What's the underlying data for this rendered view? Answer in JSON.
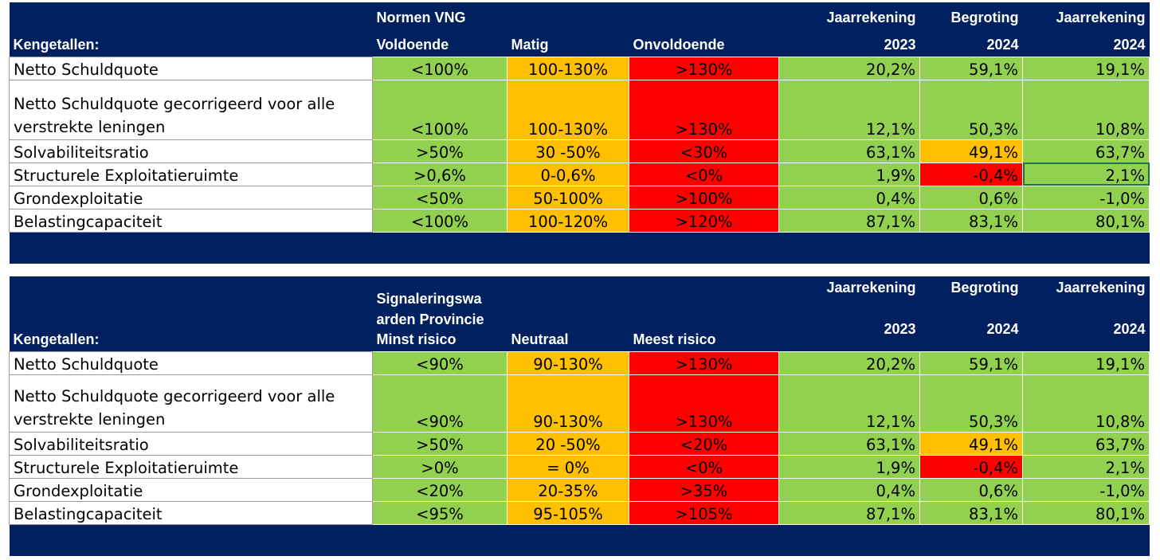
{
  "tables": [
    {
      "header": {
        "row1": [
          "",
          "Normen VNG",
          "",
          "",
          "Jaarrekening",
          "Begroting",
          "Jaarrekening"
        ],
        "row2": [
          "Kengetallen:",
          "Voldoende",
          "Matig",
          "Onvoldoende",
          "2023",
          "2024",
          "2024"
        ]
      },
      "rows": [
        {
          "label": "Netto Schuldquote",
          "good": "<100%",
          "mid": "100-130%",
          "bad": ">130%",
          "v2023": "20,2%",
          "b2024": "59,1%",
          "v2024": "19,1%"
        },
        {
          "label": "Netto Schuldquote gecorrigeerd voor alle verstrekte leningen",
          "good": "<100%",
          "mid": "100-130%",
          "bad": ">130%",
          "v2023": "12,1%",
          "b2024": "50,3%",
          "v2024": "10,8%"
        },
        {
          "label": "Solvabiliteitsratio",
          "good": ">50%",
          "mid": "30 -50%",
          "bad": "<30%",
          "v2023": "63,1%",
          "b2024": "49,1%",
          "v2024": "63,7%"
        },
        {
          "label": "Structurele Exploitatieruimte",
          "good": ">0,6%",
          "mid": "0-0,6%",
          "bad": "<0%",
          "v2023": "1,9%",
          "b2024": "-0,4%",
          "v2024": "2,1%"
        },
        {
          "label": "Grondexploitatie",
          "good": "<50%",
          "mid": "50-100%",
          "bad": ">100%",
          "v2023": "0,4%",
          "b2024": "0,6%",
          "v2024": "-1,0%"
        },
        {
          "label": "Belastingcapaciteit",
          "good": "<100%",
          "mid": "100-120%",
          "bad": ">120%",
          "v2023": "87,1%",
          "b2024": "83,1%",
          "v2024": "80,1%"
        }
      ]
    },
    {
      "header": {
        "row1": [
          "",
          "Signaleringswa arden Provincie",
          "",
          "",
          "Jaarrekening",
          "Begroting",
          "Jaarrekening"
        ],
        "row2": [
          "Kengetallen:",
          "Minst risico",
          "Neutraal",
          "Meest risico",
          "2023",
          "2024",
          "2024"
        ]
      },
      "rows": [
        {
          "label": "Netto Schuldquote",
          "good": "<90%",
          "mid": "90-130%",
          "bad": ">130%",
          "v2023": "20,2%",
          "b2024": "59,1%",
          "v2024": "19,1%"
        },
        {
          "label": "Netto Schuldquote gecorrigeerd voor alle verstrekte leningen",
          "good": "<90%",
          "mid": "90-130%",
          "bad": ">130%",
          "v2023": "12,1%",
          "b2024": "50,3%",
          "v2024": "10,8%"
        },
        {
          "label": "Solvabiliteitsratio",
          "good": ">50%",
          "mid": "20 -50%",
          "bad": "<20%",
          "v2023": "63,1%",
          "b2024": "49,1%",
          "v2024": "63,7%"
        },
        {
          "label": "Structurele Exploitatieruimte",
          "good": ">0%",
          "mid": "= 0%",
          "bad": "<0%",
          "v2023": "1,9%",
          "b2024": "-0,4%",
          "v2024": "2,1%"
        },
        {
          "label": "Grondexploitatie",
          "good": "<20%",
          "mid": "20-35%",
          "bad": ">35%",
          "v2023": "0,4%",
          "b2024": "0,6%",
          "v2024": "-1,0%"
        },
        {
          "label": "Belastingcapaciteit",
          "good": "<95%",
          "mid": "95-105%",
          "bad": ">105%",
          "v2023": "87,1%",
          "b2024": "83,1%",
          "v2024": "80,1%"
        }
      ]
    }
  ],
  "colors": {
    "header_bg": "#002060",
    "green": "#92d050",
    "amber": "#ffc000",
    "red": "#ff0000",
    "selection": "#217346"
  },
  "status_colors_b2024": [
    "green",
    "green",
    "amber",
    "red",
    "green",
    "green"
  ]
}
